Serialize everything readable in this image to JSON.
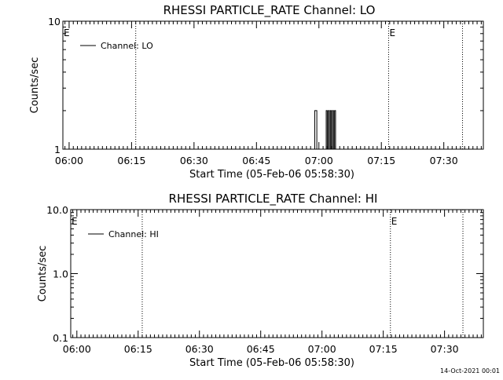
{
  "footer": {
    "timestamp": "14-Oct-2021 00:01"
  },
  "chart_data": [
    {
      "type": "line",
      "title": "RHESSI PARTICLE_RATE Channel: LO",
      "xlabel": "Start Time (05-Feb-06 05:58:30)",
      "ylabel": "Counts/sec",
      "yscale": "log",
      "ylim": [
        1,
        10
      ],
      "xlim": [
        "05:58:30",
        "07:39:30"
      ],
      "x_ticks": [
        "06:00",
        "06:15",
        "06:30",
        "06:45",
        "07:00",
        "07:15",
        "07:30"
      ],
      "y_ticks": [
        {
          "value": 1,
          "label": "1"
        },
        {
          "value": 10,
          "label": "10"
        }
      ],
      "legend": {
        "position": "top-left",
        "entries": [
          "Channel: LO"
        ]
      },
      "markers": [
        {
          "time": "06:16:00",
          "label": "E",
          "side": "left-edge"
        },
        {
          "time": "07:16:45",
          "label": "E",
          "side": "right"
        },
        {
          "time": "07:34:30",
          "label": "",
          "side": "none"
        }
      ],
      "series": [
        {
          "name": "Channel: LO",
          "spikes": [
            {
              "start": "06:59:00",
              "end": "06:59:30",
              "value": 2
            },
            {
              "start": "07:01:45",
              "end": "07:02:00",
              "value": 2
            },
            {
              "start": "07:02:15",
              "end": "07:02:30",
              "value": 2
            },
            {
              "start": "07:02:45",
              "end": "07:03:00",
              "value": 2
            },
            {
              "start": "07:03:15",
              "end": "07:03:30",
              "value": 2
            },
            {
              "start": "07:03:45",
              "end": "07:04:00",
              "value": 2
            }
          ]
        }
      ]
    },
    {
      "type": "line",
      "title": "RHESSI PARTICLE_RATE Channel: HI",
      "xlabel": "Start Time (05-Feb-06 05:58:30)",
      "ylabel": "Counts/sec",
      "yscale": "log",
      "ylim": [
        0.1,
        10
      ],
      "xlim": [
        "05:58:30",
        "07:39:30"
      ],
      "x_ticks": [
        "06:00",
        "06:15",
        "06:30",
        "06:45",
        "07:00",
        "07:15",
        "07:30"
      ],
      "y_ticks": [
        {
          "value": 0.1,
          "label": "0.1"
        },
        {
          "value": 1,
          "label": "1.0"
        },
        {
          "value": 10,
          "label": "10.0"
        }
      ],
      "legend": {
        "position": "top-left",
        "entries": [
          "Channel: HI"
        ]
      },
      "markers": [
        {
          "time": "06:16:00",
          "label": "E",
          "side": "left-edge"
        },
        {
          "time": "07:16:45",
          "label": "E",
          "side": "right"
        },
        {
          "time": "07:34:30",
          "label": "",
          "side": "none"
        }
      ],
      "series": [
        {
          "name": "Channel: HI",
          "spikes": []
        }
      ]
    }
  ]
}
